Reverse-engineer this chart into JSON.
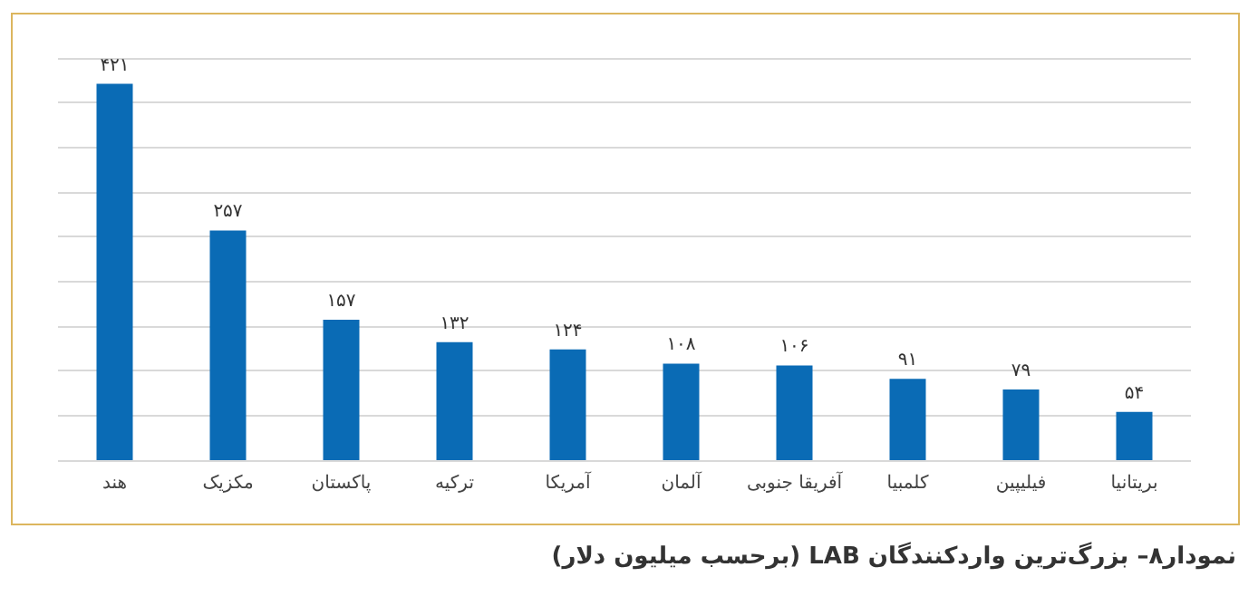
{
  "chart_data": {
    "type": "bar",
    "title": "نمودار۸– بزرگ‌ترین واردکنندگان LAB (برحسب میلیون دلار)",
    "categories": [
      "هند",
      "مکزیک",
      "پاکستان",
      "ترکیه",
      "آمریکا",
      "آلمان",
      "آفریقا جنوبی",
      "کلمبیا",
      "فیلیپین",
      "بریتانیا"
    ],
    "values": [
      421,
      257,
      157,
      132,
      124,
      108,
      106,
      91,
      79,
      54
    ],
    "value_labels": [
      "۴۲۱",
      "۲۵۷",
      "۱۵۷",
      "۱۳۲",
      "۱۲۴",
      "۱۰۸",
      "۱۰۶",
      "۹۱",
      "۷۹",
      "۵۴"
    ],
    "color": "#0a6bb5",
    "ylim": [
      0,
      450
    ],
    "yticks": [
      0,
      50,
      100,
      150,
      200,
      250,
      300,
      350,
      400,
      450
    ],
    "grid": "y",
    "tick_labels": "x"
  }
}
